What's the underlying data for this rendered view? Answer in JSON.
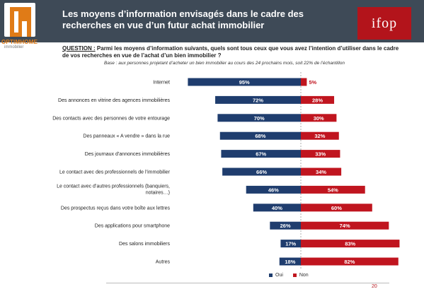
{
  "header": {
    "title": "Les moyens d’information envisagés dans le cadre des recherches en vue d’un futur achat immobilier",
    "logo_text": "OPTIMHOME",
    "logo_sub": "immobilier",
    "ifop_logo": "ifop"
  },
  "question": {
    "label": "QUESTION :",
    "text": "Parmi les moyens d’information suivants, quels sont tous ceux que vous avez l’intention d’utiliser dans le cadre de vos recherches en vue de l’achat d’un bien immobilier ?",
    "base": "Base : aux personnes projetant d’acheter un bien immobilier au cours des 24 prochains mois, soit 22% de l’échantillon"
  },
  "colors": {
    "oui": "#1f3d6e",
    "non": "#c0151f",
    "header": "#3e4a57",
    "accent": "#e07b17"
  },
  "chart_data": {
    "type": "bar",
    "orientation": "horizontal-diverging",
    "categories": [
      "Internet",
      "Des annonces en vitrine des agences immobilières",
      "Des contacts avec des personnes de votre entourage",
      "Des panneaux « A vendre » dans la rue",
      "Des journaux d’annonces immobilières",
      "Le contact avec des professionnels de l’immobilier",
      "Le contact avec d’autres professionnels (banquiers, notaires…)",
      "Des prospectus reçus dans votre boîte aux lettres",
      "Des applications pour smartphone",
      "Des salons immobiliers",
      "Autres"
    ],
    "series": [
      {
        "name": "Oui",
        "values": [
          95,
          72,
          70,
          68,
          67,
          66,
          46,
          40,
          26,
          17,
          18
        ]
      },
      {
        "name": "Non",
        "values": [
          5,
          28,
          30,
          32,
          33,
          34,
          54,
          60,
          74,
          83,
          82
        ]
      }
    ],
    "value_suffix": "%",
    "legend_position": "bottom-right"
  },
  "page_number": "20"
}
